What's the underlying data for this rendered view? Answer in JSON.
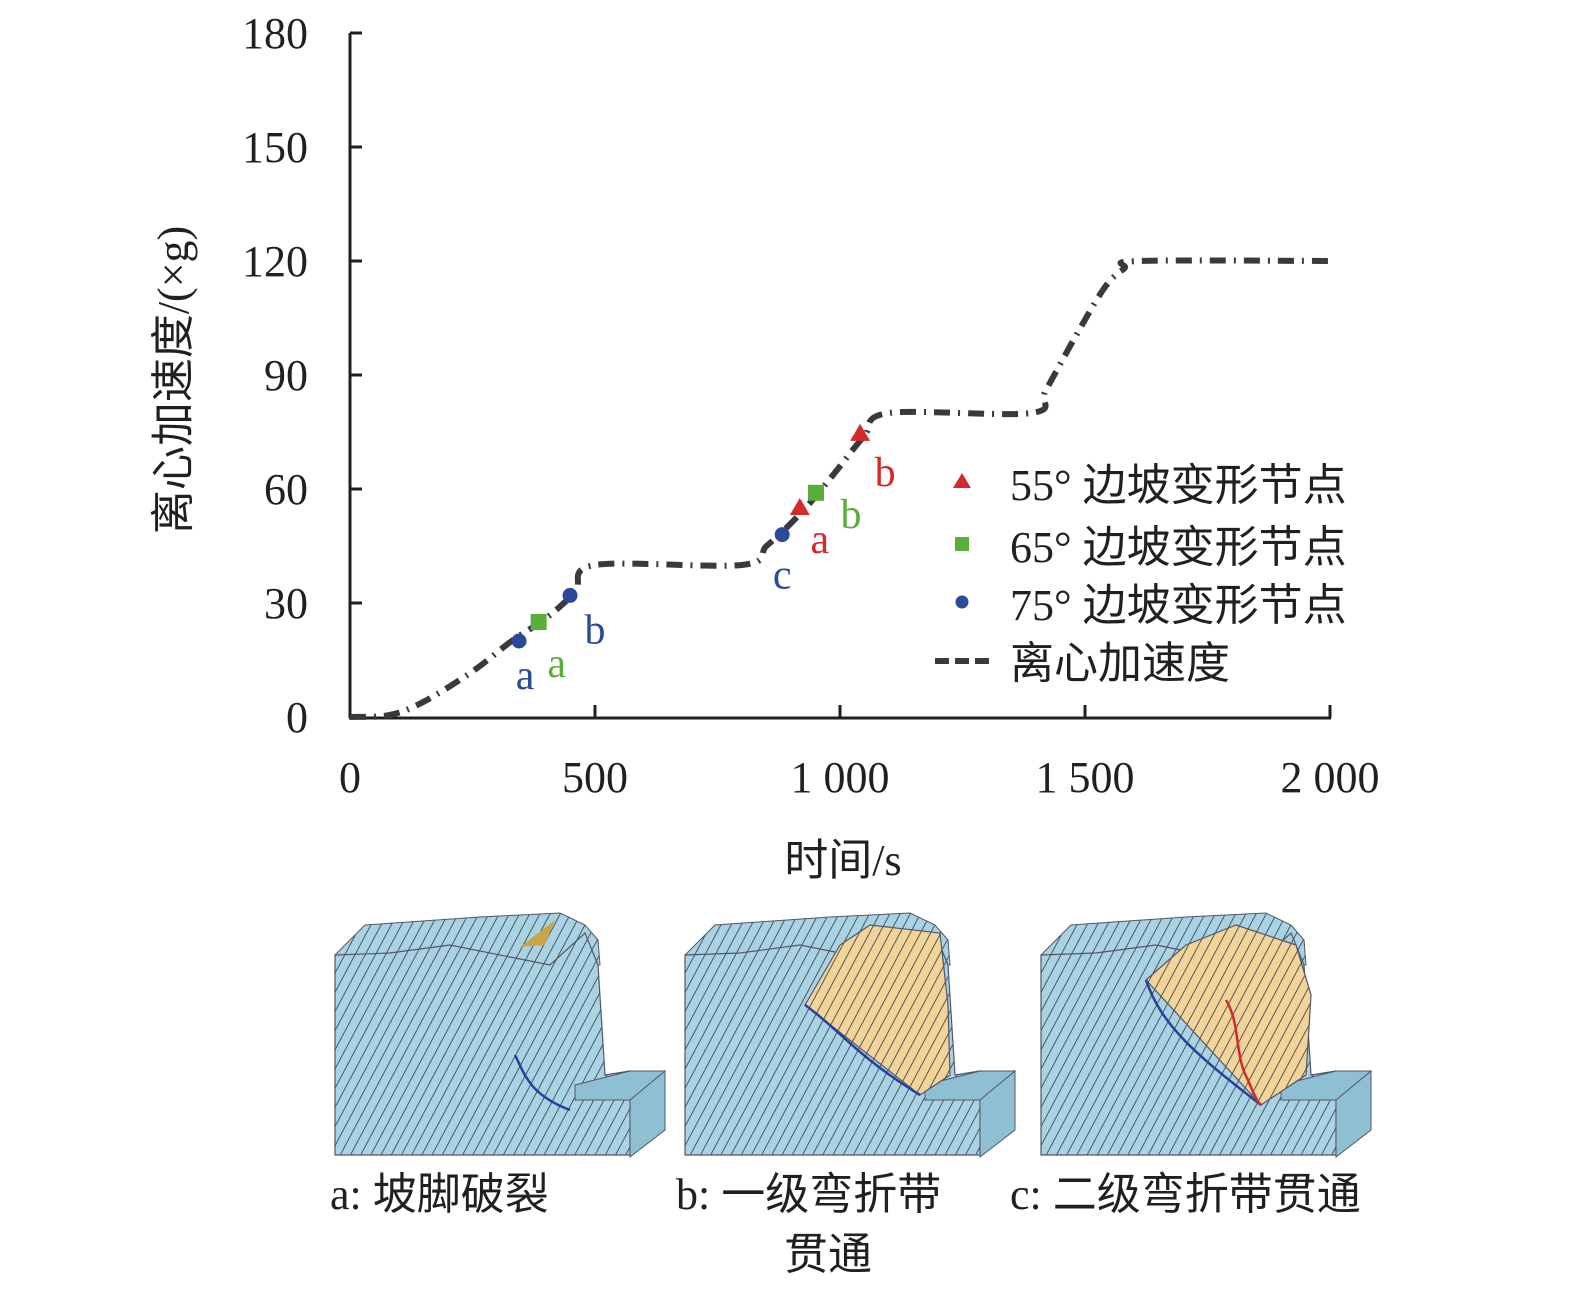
{
  "chart_data": {
    "type": "line",
    "title": "",
    "xlabel": "时间/s",
    "ylabel": "离心加速度/(×g)",
    "xlim": [
      0,
      2000
    ],
    "ylim": [
      0,
      180
    ],
    "xticks": [
      0,
      500,
      1000,
      1500,
      2000
    ],
    "xtick_labels": [
      "0",
      "500",
      "1 000",
      "1 500",
      "2 000"
    ],
    "yticks": [
      0,
      30,
      60,
      90,
      120,
      150,
      180
    ],
    "ytick_labels": [
      "0",
      "30",
      "60",
      "90",
      "120",
      "150",
      "180"
    ],
    "grid": false,
    "legend_position": "right-middle",
    "curve": {
      "name": "离心加速度",
      "style": "dashed",
      "color": "#3a3a3c",
      "x": [
        0,
        80,
        150,
        250,
        330,
        400,
        460,
        500,
        800,
        850,
        900,
        950,
        1000,
        1050,
        1100,
        1390,
        1420,
        1480,
        1540,
        1580,
        1610,
        2000
      ],
      "y": [
        0,
        0.5,
        4,
        12,
        20,
        26,
        33,
        40,
        40,
        45,
        51,
        58,
        66,
        74,
        80,
        80,
        86,
        100,
        113,
        118,
        120,
        120
      ]
    },
    "series": [
      {
        "name": "55° 边坡变形节点",
        "marker": "triangle",
        "color": "#d42a2a",
        "points": [
          {
            "label": "a",
            "x": 918,
            "y": 55
          },
          {
            "label": "b",
            "x": 1041,
            "y": 74.5
          }
        ]
      },
      {
        "name": "65° 边坡变形节点",
        "marker": "square",
        "color": "#5aae3a",
        "points": [
          {
            "label": "a",
            "x": 385,
            "y": 25
          },
          {
            "label": "b",
            "x": 951,
            "y": 59
          }
        ]
      },
      {
        "name": "75° 边坡变形节点",
        "marker": "circle",
        "color": "#2b4a9a",
        "points": [
          {
            "label": "a",
            "x": 345,
            "y": 20
          },
          {
            "label": "b",
            "x": 449,
            "y": 32
          },
          {
            "label": "c",
            "x": 882,
            "y": 48
          }
        ]
      }
    ],
    "legend": [
      {
        "marker": "triangle",
        "label": "55° 边坡变形节点"
      },
      {
        "marker": "square",
        "label": "65° 边坡变形节点"
      },
      {
        "marker": "circle",
        "label": "75° 边坡变形节点"
      },
      {
        "marker": "dash",
        "label": "离心加速度"
      }
    ]
  },
  "panels": [
    {
      "id": "a",
      "caption": "a: 坡脚破裂",
      "failure": "toe"
    },
    {
      "id": "b",
      "caption_line1": "b: 一级弯折带",
      "caption_line2": "贯通",
      "failure": "first-bend"
    },
    {
      "id": "c",
      "caption": "c: 二级弯折带贯通",
      "failure": "second-bend"
    }
  ],
  "colors": {
    "rock": "#a9d3e4",
    "rock_dark": "#8fbfd3",
    "moved": "#f2d39a",
    "hatch": "#2f3a40",
    "crack_blue": "#2a3f9a",
    "crack_red": "#d42a2a"
  }
}
